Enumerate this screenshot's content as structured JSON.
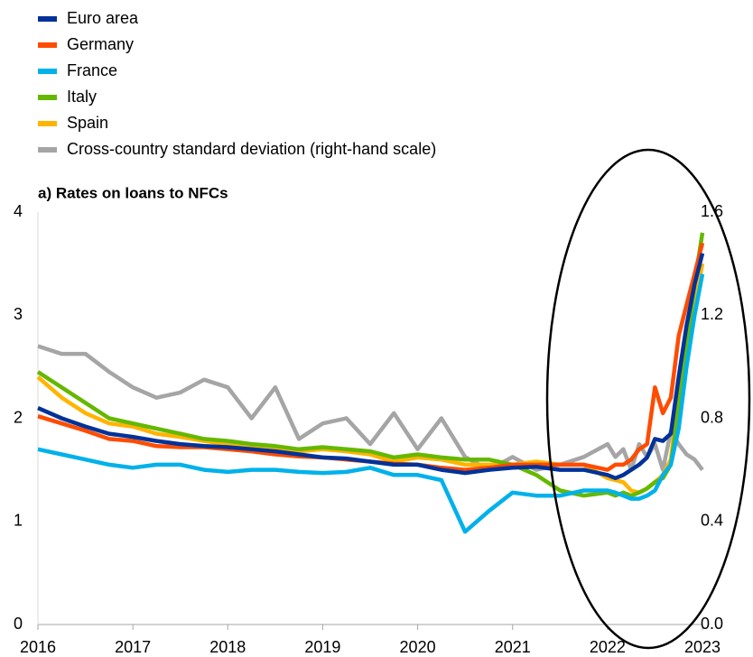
{
  "chart_data": {
    "type": "line",
    "title": "a) Rates on loans to NFCs",
    "x": [
      2016,
      2016.25,
      2016.5,
      2016.75,
      2017,
      2017.25,
      2017.5,
      2017.75,
      2018,
      2018.25,
      2018.5,
      2018.75,
      2019,
      2019.25,
      2019.5,
      2019.75,
      2020,
      2020.25,
      2020.5,
      2020.75,
      2021,
      2021.25,
      2021.5,
      2021.75,
      2022,
      2022.083,
      2022.167,
      2022.25,
      2022.333,
      2022.417,
      2022.5,
      2022.583,
      2022.667,
      2022.75,
      2022.833,
      2022.917,
      2023
    ],
    "series": [
      {
        "name": "Euro area",
        "color": "#003299",
        "values": [
          2.1,
          2.0,
          1.92,
          1.85,
          1.82,
          1.78,
          1.75,
          1.73,
          1.72,
          1.7,
          1.68,
          1.65,
          1.62,
          1.61,
          1.58,
          1.55,
          1.55,
          1.5,
          1.47,
          1.5,
          1.52,
          1.53,
          1.5,
          1.5,
          1.45,
          1.42,
          1.45,
          1.5,
          1.55,
          1.62,
          1.8,
          1.78,
          1.85,
          2.4,
          2.9,
          3.3,
          3.6
        ]
      },
      {
        "name": "Germany",
        "color": "#ff4b00",
        "values": [
          2.02,
          1.95,
          1.88,
          1.8,
          1.78,
          1.73,
          1.72,
          1.72,
          1.7,
          1.68,
          1.65,
          1.63,
          1.62,
          1.6,
          1.58,
          1.56,
          1.55,
          1.52,
          1.5,
          1.52,
          1.55,
          1.55,
          1.55,
          1.55,
          1.5,
          1.55,
          1.55,
          1.6,
          1.7,
          1.75,
          2.3,
          2.05,
          2.2,
          2.8,
          3.1,
          3.4,
          3.7
        ]
      },
      {
        "name": "France",
        "color": "#00b1ea",
        "values": [
          1.7,
          1.65,
          1.6,
          1.55,
          1.52,
          1.55,
          1.55,
          1.5,
          1.48,
          1.5,
          1.5,
          1.48,
          1.47,
          1.48,
          1.52,
          1.45,
          1.45,
          1.4,
          0.9,
          1.1,
          1.28,
          1.25,
          1.25,
          1.3,
          1.3,
          1.28,
          1.25,
          1.22,
          1.22,
          1.25,
          1.3,
          1.45,
          1.55,
          1.9,
          2.5,
          3.0,
          3.4
        ]
      },
      {
        "name": "Italy",
        "color": "#65b800",
        "values": [
          2.45,
          2.3,
          2.15,
          2.0,
          1.95,
          1.9,
          1.85,
          1.8,
          1.78,
          1.75,
          1.73,
          1.7,
          1.72,
          1.7,
          1.68,
          1.62,
          1.65,
          1.62,
          1.6,
          1.6,
          1.55,
          1.45,
          1.3,
          1.25,
          1.28,
          1.25,
          1.28,
          1.25,
          1.28,
          1.32,
          1.38,
          1.42,
          1.55,
          2.1,
          2.7,
          3.3,
          3.8
        ]
      },
      {
        "name": "Spain",
        "color": "#ffb400",
        "values": [
          2.4,
          2.2,
          2.05,
          1.95,
          1.92,
          1.85,
          1.82,
          1.78,
          1.75,
          1.72,
          1.7,
          1.68,
          1.7,
          1.68,
          1.65,
          1.58,
          1.62,
          1.6,
          1.55,
          1.55,
          1.55,
          1.58,
          1.55,
          1.55,
          1.42,
          1.4,
          1.38,
          1.3,
          1.28,
          1.32,
          1.38,
          1.45,
          1.6,
          2.2,
          2.8,
          3.1,
          3.5
        ]
      },
      {
        "name": "Cross-country standard deviation (right-hand scale)",
        "color": "#a5a5a5",
        "axis": "y2",
        "values": [
          1.08,
          1.05,
          1.05,
          0.98,
          0.92,
          0.88,
          0.9,
          0.95,
          0.92,
          0.8,
          0.92,
          0.72,
          0.78,
          0.8,
          0.7,
          0.82,
          0.68,
          0.8,
          0.65,
          0.6,
          0.65,
          0.6,
          0.62,
          0.65,
          0.7,
          0.65,
          0.68,
          0.6,
          0.7,
          0.65,
          0.7,
          0.6,
          0.75,
          0.7,
          0.66,
          0.64,
          0.6
        ]
      }
    ],
    "xlim": [
      2016,
      2023
    ],
    "xticks": [
      2016,
      2017,
      2018,
      2019,
      2020,
      2021,
      2022,
      2023
    ],
    "ylim": [
      0,
      4
    ],
    "yticks": [
      0,
      1,
      2,
      3,
      4
    ],
    "y2lim": [
      0,
      1.6
    ],
    "y2ticks": [
      {
        "value": 0,
        "label": "0.0"
      },
      0.4,
      0.8,
      1.2,
      1.6
    ],
    "grid": false
  }
}
